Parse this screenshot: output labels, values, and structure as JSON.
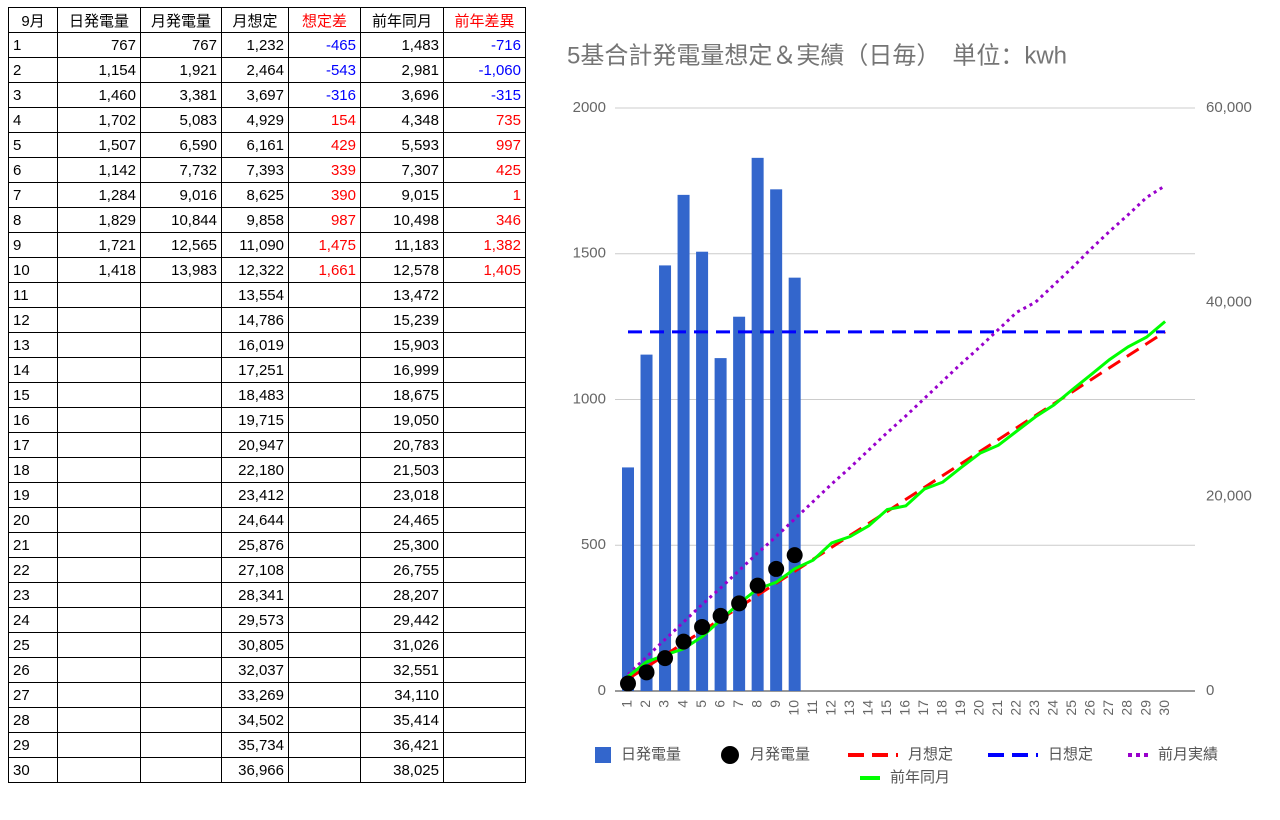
{
  "table": {
    "header": [
      "9月",
      "日発電量",
      "月発電量",
      "月想定",
      "想定差",
      "前年同月",
      "前年差異"
    ],
    "rows": [
      [
        "1",
        "767",
        "767",
        "1,232",
        "-465",
        "1,483",
        "-716"
      ],
      [
        "2",
        "1,154",
        "1,921",
        "2,464",
        "-543",
        "2,981",
        "-1,060"
      ],
      [
        "3",
        "1,460",
        "3,381",
        "3,697",
        "-316",
        "3,696",
        "-315"
      ],
      [
        "4",
        "1,702",
        "5,083",
        "4,929",
        "154",
        "4,348",
        "735"
      ],
      [
        "5",
        "1,507",
        "6,590",
        "6,161",
        "429",
        "5,593",
        "997"
      ],
      [
        "6",
        "1,142",
        "7,732",
        "7,393",
        "339",
        "7,307",
        "425"
      ],
      [
        "7",
        "1,284",
        "9,016",
        "8,625",
        "390",
        "9,015",
        "1"
      ],
      [
        "8",
        "1,829",
        "10,844",
        "9,858",
        "987",
        "10,498",
        "346"
      ],
      [
        "9",
        "1,721",
        "12,565",
        "11,090",
        "1,475",
        "11,183",
        "1,382"
      ],
      [
        "10",
        "1,418",
        "13,983",
        "12,322",
        "1,661",
        "12,578",
        "1,405"
      ],
      [
        "11",
        null,
        null,
        "13,554",
        null,
        "13,472",
        null
      ],
      [
        "12",
        null,
        null,
        "14,786",
        null,
        "15,239",
        null
      ],
      [
        "13",
        null,
        null,
        "16,019",
        null,
        "15,903",
        null
      ],
      [
        "14",
        null,
        null,
        "17,251",
        null,
        "16,999",
        null
      ],
      [
        "15",
        null,
        null,
        "18,483",
        null,
        "18,675",
        null
      ],
      [
        "16",
        null,
        null,
        "19,715",
        null,
        "19,050",
        null
      ],
      [
        "17",
        null,
        null,
        "20,947",
        null,
        "20,783",
        null
      ],
      [
        "18",
        null,
        null,
        "22,180",
        null,
        "21,503",
        null
      ],
      [
        "19",
        null,
        null,
        "23,412",
        null,
        "23,018",
        null
      ],
      [
        "20",
        null,
        null,
        "24,644",
        null,
        "24,465",
        null
      ],
      [
        "21",
        null,
        null,
        "25,876",
        null,
        "25,300",
        null
      ],
      [
        "22",
        null,
        null,
        "27,108",
        null,
        "26,755",
        null
      ],
      [
        "23",
        null,
        null,
        "28,341",
        null,
        "28,207",
        null
      ],
      [
        "24",
        null,
        null,
        "29,573",
        null,
        "29,442",
        null
      ],
      [
        "25",
        null,
        null,
        "30,805",
        null,
        "31,026",
        null
      ],
      [
        "26",
        null,
        null,
        "32,037",
        null,
        "32,551",
        null
      ],
      [
        "27",
        null,
        null,
        "33,269",
        null,
        "34,110",
        null
      ],
      [
        "28",
        null,
        null,
        "34,502",
        null,
        "35,414",
        null
      ],
      [
        "29",
        null,
        null,
        "35,734",
        null,
        "36,421",
        null
      ],
      [
        "30",
        null,
        null,
        "36,966",
        null,
        "38,025",
        null
      ]
    ]
  },
  "chart_data": {
    "type": "combo",
    "title": "5基合計発電量想定＆実績（日毎）　単位：kwh",
    "categories": [
      "1",
      "2",
      "3",
      "4",
      "5",
      "6",
      "7",
      "8",
      "9",
      "10",
      "11",
      "12",
      "13",
      "14",
      "15",
      "16",
      "17",
      "18",
      "19",
      "20",
      "21",
      "22",
      "23",
      "24",
      "25",
      "26",
      "27",
      "28",
      "29",
      "30"
    ],
    "ylim": [
      0,
      2000
    ],
    "yticks": [
      0,
      500,
      1000,
      1500,
      2000
    ],
    "y2lim": [
      0,
      60000
    ],
    "y2ticks": [
      0,
      {
        "value": 20000,
        "label": "20,000"
      },
      {
        "value": 40000,
        "label": "40,000"
      },
      {
        "value": 60000,
        "label": "60,000"
      }
    ],
    "grid": true,
    "series": [
      {
        "name": "日発電量",
        "type": "bar",
        "color": "#3366cc",
        "values": [
          767,
          1154,
          1460,
          1702,
          1507,
          1142,
          1284,
          1829,
          1721,
          1418,
          null,
          null,
          null,
          null,
          null,
          null,
          null,
          null,
          null,
          null,
          null,
          null,
          null,
          null,
          null,
          null,
          null,
          null,
          null,
          null
        ]
      },
      {
        "name": "月発電量",
        "type": "scatter",
        "color": "#000000",
        "axis": "y2",
        "values": [
          767,
          1921,
          3381,
          5083,
          6590,
          7732,
          9016,
          10844,
          12565,
          13983,
          null,
          null,
          null,
          null,
          null,
          null,
          null,
          null,
          null,
          null,
          null,
          null,
          null,
          null,
          null,
          null,
          null,
          null,
          null,
          null
        ]
      },
      {
        "name": "月想定",
        "type": "line",
        "dash": "dashed",
        "color": "#ff0000",
        "axis": "y2",
        "values": [
          1232,
          2464,
          3697,
          4929,
          6161,
          7393,
          8625,
          9858,
          11090,
          12322,
          13554,
          14786,
          16019,
          17251,
          18483,
          19715,
          20947,
          22180,
          23412,
          24644,
          25876,
          27108,
          28341,
          29573,
          30805,
          32037,
          33269,
          34502,
          35734,
          36966
        ]
      },
      {
        "name": "日想定",
        "type": "line",
        "dash": "dashed",
        "color": "#0000ff",
        "values": [
          1232,
          1232,
          1232,
          1232,
          1232,
          1232,
          1232,
          1232,
          1232,
          1232,
          1232,
          1232,
          1232,
          1232,
          1232,
          1232,
          1232,
          1232,
          1232,
          1232,
          1232,
          1232,
          1232,
          1232,
          1232,
          1232,
          1232,
          1232,
          1232,
          1232
        ]
      },
      {
        "name": "前月実績",
        "type": "line",
        "dash": "dotted",
        "color": "#9900cc",
        "axis": "y2",
        "values": [
          1700,
          3500,
          5300,
          7100,
          8900,
          10600,
          12400,
          14200,
          15900,
          17700,
          19500,
          21300,
          23000,
          24800,
          26600,
          28300,
          30100,
          31900,
          33700,
          35400,
          37200,
          39000,
          40000,
          41800,
          43600,
          45500,
          47300,
          49000,
          50800,
          52000
        ]
      },
      {
        "name": "前年同月",
        "type": "line",
        "color": "#00ff00",
        "axis": "y2",
        "values": [
          1483,
          2981,
          3696,
          4348,
          5593,
          7307,
          9015,
          10498,
          11183,
          12578,
          13472,
          15239,
          15903,
          16999,
          18675,
          19050,
          20783,
          21503,
          23018,
          24465,
          25300,
          26755,
          28207,
          29442,
          31026,
          32551,
          34110,
          35414,
          36421,
          38025
        ]
      }
    ]
  }
}
